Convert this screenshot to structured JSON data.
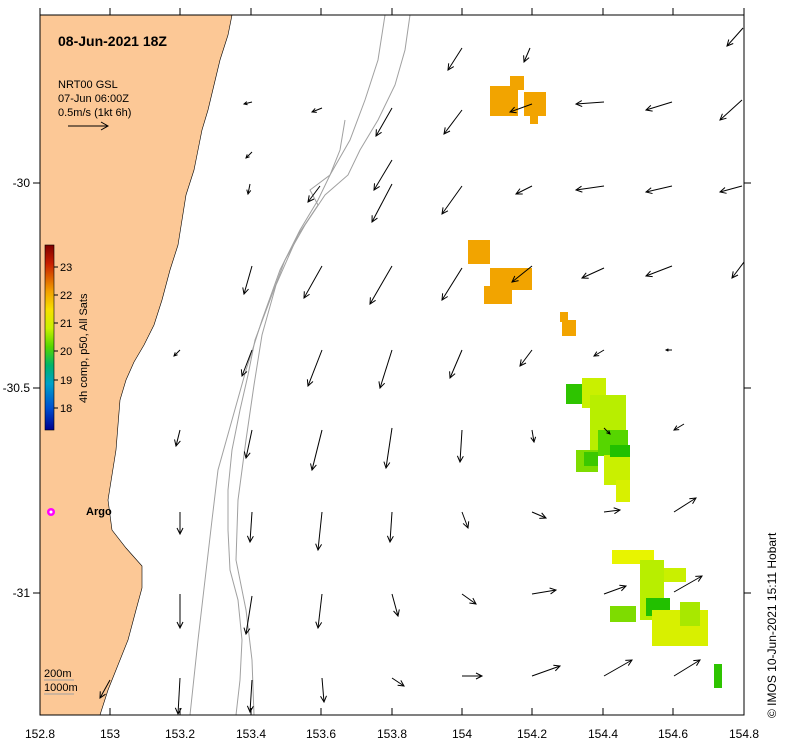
{
  "map": {
    "title": "08-Jun-2021 18Z",
    "product": "NRT00 GSL",
    "product_time": "07-Jun 06:00Z",
    "scale_label": "0.5m/s (1kt 6h)",
    "colorbar": {
      "label": "4h comp, p50, All Sats",
      "ticks": [
        "23",
        "22",
        "21",
        "20",
        "19",
        "18"
      ],
      "colors": [
        "#7f0000",
        "#c81e00",
        "#f2a000",
        "#f7e000",
        "#c9f000",
        "#56d600",
        "#00b46a",
        "#00a0c8",
        "#0050d0",
        "#00008f"
      ]
    },
    "argo_label": "Argo",
    "depth_legend": [
      "200m",
      "1000m"
    ],
    "credit": "© IMOS 10-Jun-2021 15:11 Hobart",
    "x_ticks": [
      "152.8",
      "153",
      "153.2",
      "153.4",
      "153.6",
      "153.8",
      "154",
      "154.2",
      "154.4",
      "154.6",
      "154.8"
    ],
    "y_ticks": [
      "-30",
      "-30.5",
      "-31"
    ],
    "land_color": "#fcc896",
    "isobath_color": "#a0a0a0"
  }
}
